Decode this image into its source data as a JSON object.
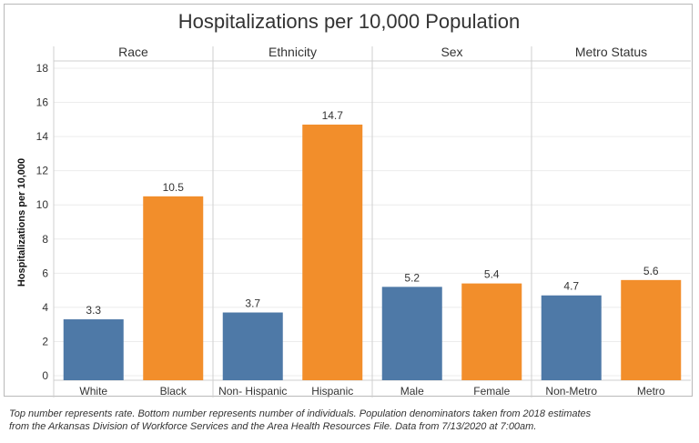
{
  "chart_data": {
    "type": "bar",
    "title": "Hospitalizations per 10,000 Population",
    "ylabel": "Hospitalizations per 10,000",
    "ylim": [
      0,
      18
    ],
    "yticks": [
      0,
      2,
      4,
      6,
      8,
      10,
      12,
      14,
      16,
      18
    ],
    "grid": true,
    "panels": [
      {
        "name": "Race",
        "categories": [
          "White",
          "Black"
        ],
        "values": [
          3.3,
          10.5
        ],
        "value_labels": [
          "3.3",
          "10.5"
        ]
      },
      {
        "name": "Ethnicity",
        "categories": [
          "Non- Hispanic",
          "Hispanic"
        ],
        "values": [
          3.7,
          14.7
        ],
        "value_labels": [
          "3.7",
          "14.7"
        ]
      },
      {
        "name": "Sex",
        "categories": [
          "Male",
          "Female"
        ],
        "values": [
          5.2,
          5.4
        ],
        "value_labels": [
          "5.2",
          "5.4"
        ]
      },
      {
        "name": "Metro Status",
        "categories": [
          "Non-Metro",
          "Metro"
        ],
        "values": [
          4.7,
          5.6
        ],
        "value_labels": [
          "4.7",
          "5.6"
        ]
      }
    ],
    "colors": [
      "#4e79a7",
      "#f28e2b"
    ]
  },
  "footnote": {
    "line1": "Top number represents rate. Bottom number represents number of individuals. Population denominators taken from 2018 estimates",
    "line2": "from the Arkansas Division of Workforce Services and the Area Health Resources File. Data from 7/13/2020 at 7:00am."
  }
}
